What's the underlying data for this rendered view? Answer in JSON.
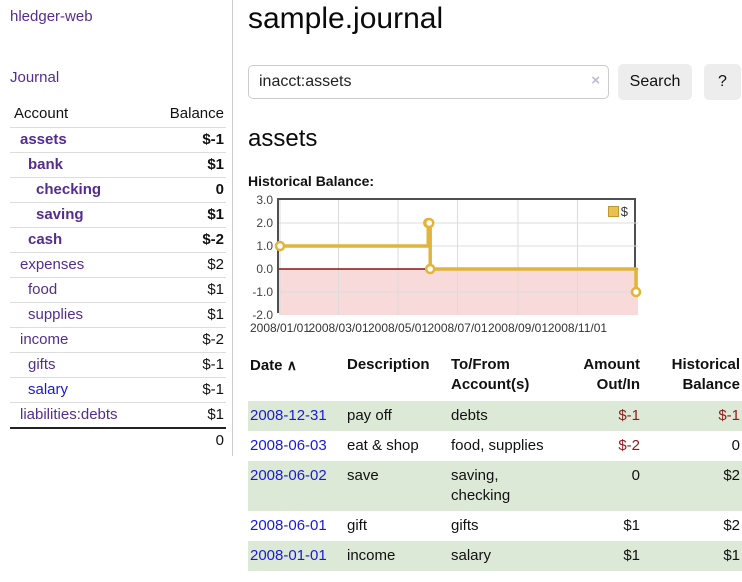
{
  "brand": {
    "label": "hledger-web"
  },
  "nav": {
    "journal_label": "Journal"
  },
  "sidebar": {
    "headers": {
      "account": "Account",
      "balance": "Balance"
    },
    "rows": [
      {
        "name": "assets",
        "level": 1,
        "bold": true,
        "balance": "$-1",
        "balance_style": "neg"
      },
      {
        "name": "bank",
        "level": 2,
        "bold": true,
        "balance": "$1",
        "balance_style": ""
      },
      {
        "name": "checking",
        "level": 3,
        "bold": true,
        "balance": "0",
        "balance_style": ""
      },
      {
        "name": "saving",
        "level": 3,
        "bold": true,
        "balance": "$1",
        "balance_style": ""
      },
      {
        "name": "cash",
        "level": 2,
        "bold": true,
        "balance": "$-2",
        "balance_style": "neg"
      },
      {
        "name": "expenses",
        "level": 1,
        "bold": false,
        "balance": "$2",
        "balance_style": ""
      },
      {
        "name": "food",
        "level": 2,
        "bold": false,
        "balance": "$1",
        "balance_style": ""
      },
      {
        "name": "supplies",
        "level": 2,
        "bold": false,
        "balance": "$1",
        "balance_style": ""
      },
      {
        "name": "income",
        "level": 1,
        "bold": false,
        "balance": "$-2",
        "balance_style": "neg-muted"
      },
      {
        "name": "gifts",
        "level": 2,
        "bold": false,
        "balance": "$-1",
        "balance_style": "neg-muted"
      },
      {
        "name": "salary",
        "level": 2,
        "bold": false,
        "link_style": "blue",
        "balance": "$-1",
        "balance_style": "neg-muted"
      },
      {
        "name": "liabilities:debts",
        "level": 1,
        "bold": false,
        "balance": "$1",
        "balance_style": ""
      }
    ],
    "total": "0"
  },
  "main": {
    "title": "sample.journal"
  },
  "search": {
    "value": "inacct:assets",
    "clear_icon": "×",
    "button_label": "Search",
    "help_label": "?"
  },
  "account": {
    "heading": "assets",
    "chart_title": "Historical Balance:"
  },
  "chart_data": {
    "type": "line",
    "title": "Historical Balance",
    "series": [
      {
        "name": "$",
        "color": "#e3b43a",
        "marker_fill": "#ffffff",
        "points": [
          [
            "2008-01-01",
            1
          ],
          [
            "2008-06-01",
            2
          ],
          [
            "2008-06-02",
            2
          ],
          [
            "2008-06-03",
            0
          ],
          [
            "2008-12-31",
            -1
          ]
        ]
      }
    ],
    "x_ticks": [
      "2008/01/01",
      "2008/03/01",
      "2008/05/01",
      "2008/07/01",
      "2008/09/01",
      "2008/11/01"
    ],
    "y_ticks": [
      3.0,
      2.0,
      1.0,
      0.0,
      -1.0,
      -2.0
    ],
    "xlim": [
      "2008-01-01",
      "2008-12-31"
    ],
    "ylim": [
      -2,
      3
    ],
    "grid": true,
    "step": true,
    "zero_line_color": "#8b1111",
    "negative_region_color": "#f9dada",
    "gridline_color": "#dcdcdc",
    "legend": {
      "label": "$",
      "position": "top-right",
      "swatch_color": "#eac14f"
    }
  },
  "register": {
    "headers": {
      "date": "Date",
      "sort_icon": "∧",
      "description": "Description",
      "accounts": "To/From Account(s)",
      "amount": "Amount Out/In",
      "balance": "Historical Balance"
    },
    "rows": [
      {
        "date": "2008-12-31",
        "description": "pay off",
        "accounts": "debts",
        "amount": "$-1",
        "amount_neg": true,
        "balance": "$-1",
        "balance_neg": true
      },
      {
        "date": "2008-06-03",
        "description": "eat & shop",
        "accounts": "food, supplies",
        "amount": "$-2",
        "amount_neg": true,
        "balance": "0",
        "balance_neg": false
      },
      {
        "date": "2008-06-02",
        "description": "save",
        "accounts": "saving, checking",
        "amount": "0",
        "amount_neg": false,
        "balance": "$2",
        "balance_neg": false
      },
      {
        "date": "2008-06-01",
        "description": "gift",
        "accounts": "gifts",
        "amount": "$1",
        "amount_neg": false,
        "balance": "$2",
        "balance_neg": false
      },
      {
        "date": "2008-01-01",
        "description": "income",
        "accounts": "salary",
        "amount": "$1",
        "amount_neg": false,
        "balance": "$1",
        "balance_neg": false
      }
    ]
  },
  "colors": {
    "link_purple": "#552d90",
    "link_blue": "#1a1ad6",
    "negative_strong": "#8f1a1a",
    "negative_muted": "#bc7d7d",
    "row_green": "#dce9d6",
    "series_gold": "#e3b43a",
    "chart_border": "#4f4f4f"
  }
}
